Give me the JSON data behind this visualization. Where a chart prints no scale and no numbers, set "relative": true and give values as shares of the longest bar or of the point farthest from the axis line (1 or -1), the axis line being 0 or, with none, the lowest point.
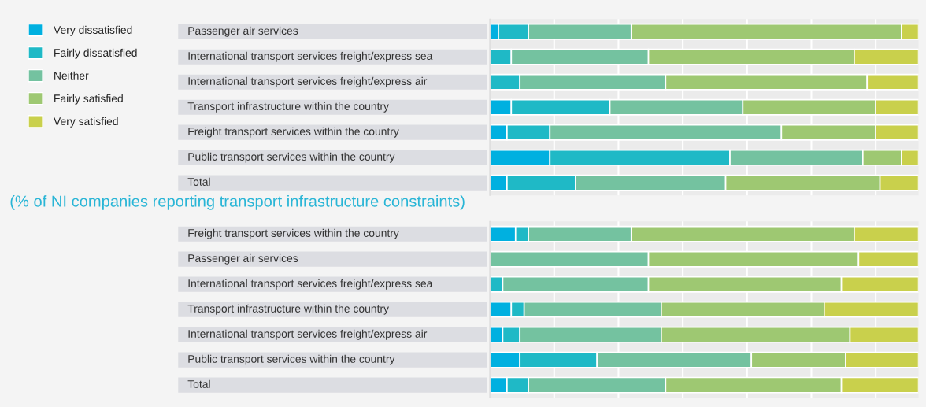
{
  "chart_data": [
    {
      "type": "bar",
      "orientation": "horizontal",
      "stacked": true,
      "relative": true,
      "grid": "x",
      "legend": "left",
      "categories": [
        "Passenger air services",
        "International transport services freight/express sea",
        "International transport services freight/express air",
        "Transport infrastructure within the country",
        "Freight transport services within the country",
        "Public transport services within the country",
        "Total"
      ],
      "series": [
        {
          "name": "Very dissatisfied",
          "color": "#00b0e0",
          "values": [
            0.02,
            0,
            0,
            0.05,
            0.04,
            0.14,
            0.04
          ]
        },
        {
          "name": "Fairly dissatisfied",
          "color": "#1fb9c6",
          "values": [
            0.07,
            0.05,
            0.07,
            0.23,
            0.1,
            0.42,
            0.16
          ]
        },
        {
          "name": "Neither",
          "color": "#74c2a0",
          "values": [
            0.24,
            0.32,
            0.34,
            0.31,
            0.54,
            0.31,
            0.35
          ]
        },
        {
          "name": "Fairly satisfied",
          "color": "#9ec872",
          "values": [
            0.63,
            0.48,
            0.47,
            0.31,
            0.22,
            0.09,
            0.36
          ]
        },
        {
          "name": "Very satisfied",
          "color": "#c9d04c",
          "values": [
            0.04,
            0.15,
            0.12,
            0.1,
            0.1,
            0.04,
            0.09
          ]
        }
      ]
    },
    {
      "type": "bar",
      "orientation": "horizontal",
      "stacked": true,
      "relative": true,
      "grid": "x",
      "title": "(% of NI companies reporting transport infrastructure constraints)",
      "categories": [
        "Freight transport services within the country",
        "Passenger air services",
        "International transport services freight/express sea",
        "Transport infrastructure within the country",
        "International transport services freight/express air",
        "Public transport services within the country",
        "Total"
      ],
      "series": [
        {
          "color": "#00b0e0",
          "values": [
            0.06,
            0,
            0,
            0.05,
            0.03,
            0.07,
            0.04
          ]
        },
        {
          "color": "#1fb9c6",
          "values": [
            0.03,
            0,
            0.03,
            0.03,
            0.04,
            0.18,
            0.05
          ]
        },
        {
          "color": "#74c2a0",
          "values": [
            0.24,
            0.37,
            0.34,
            0.32,
            0.33,
            0.36,
            0.32
          ]
        },
        {
          "color": "#9ec872",
          "values": [
            0.52,
            0.49,
            0.45,
            0.38,
            0.44,
            0.22,
            0.41
          ]
        },
        {
          "color": "#c9d04c",
          "values": [
            0.15,
            0.14,
            0.18,
            0.22,
            0.16,
            0.17,
            0.18
          ]
        }
      ]
    }
  ]
}
